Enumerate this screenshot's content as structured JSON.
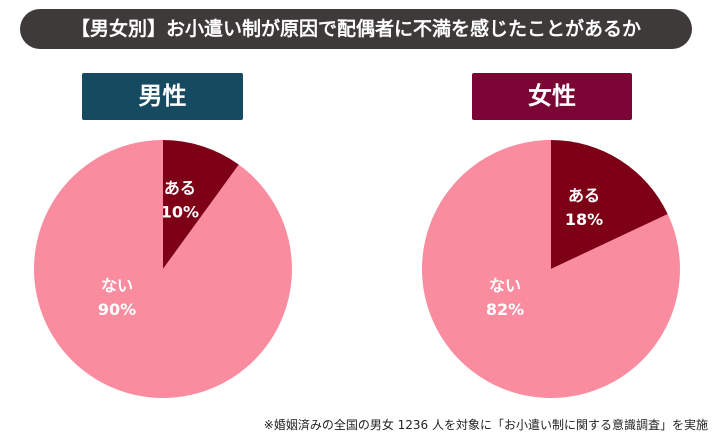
{
  "title": "【男女別】お小遣い制が原因で配偶者に不満を感じたことがあるか",
  "footnote": "※婚姻済みの全国の男女 1236 人を対象に「お小遣い制に関する意識調査」を実施",
  "colors": {
    "title_bg": "#3d3a39",
    "male_label_bg": "#154a61",
    "female_label_bg": "#7b0635",
    "slice_yes": "#7e0016",
    "slice_no": "#fa8c9f"
  },
  "chart_data": [
    {
      "type": "pie",
      "title": "男性",
      "slices": [
        {
          "label": "ある",
          "value": 10,
          "display": "10%"
        },
        {
          "label": "ない",
          "value": 90,
          "display": "90%"
        }
      ]
    },
    {
      "type": "pie",
      "title": "女性",
      "slices": [
        {
          "label": "ある",
          "value": 18,
          "display": "18%"
        },
        {
          "label": "ない",
          "value": 82,
          "display": "82%"
        }
      ]
    }
  ]
}
